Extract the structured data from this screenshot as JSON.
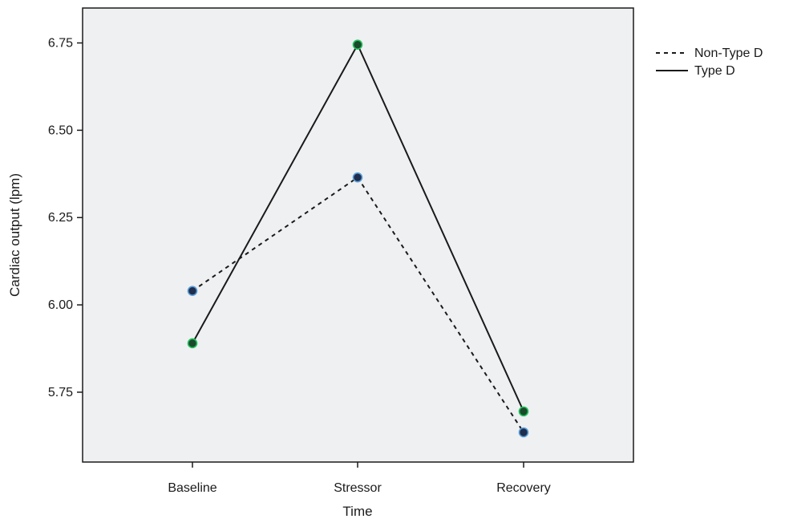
{
  "chart_data": {
    "type": "line",
    "title": "",
    "xlabel": "Time",
    "ylabel": "Cardiac output (lpm)",
    "categories": [
      "Baseline",
      "Stressor",
      "Recovery"
    ],
    "ylim": [
      5.55,
      6.85
    ],
    "yticks": [
      5.75,
      6.0,
      6.25,
      6.5,
      6.75
    ],
    "ytick_labels": [
      "5.75",
      "6.00",
      "6.25",
      "6.50",
      "6.75"
    ],
    "grid": false,
    "legend_position": "top-right, outside plot",
    "plot_background": "#eff0f2",
    "series": [
      {
        "name": "Non-Type D",
        "line_style": "dashed",
        "values": [
          6.04,
          6.365,
          5.635
        ],
        "marker_color": "#1f2d4f",
        "marker_edge": "#5aa0d8"
      },
      {
        "name": "Type D",
        "line_style": "solid",
        "values": [
          5.89,
          6.745,
          5.695
        ],
        "marker_color": "#1b4a2b",
        "marker_edge": "#22c55e"
      }
    ]
  }
}
